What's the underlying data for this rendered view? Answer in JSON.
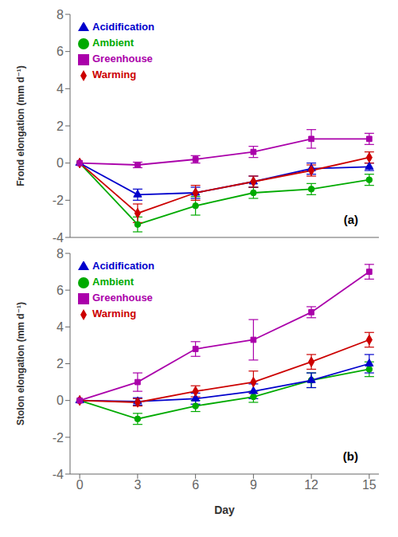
{
  "chart_data": [
    {
      "type": "line",
      "ylabel": "Frond elongation (mm d⁻¹)",
      "annotations": [
        "(a)"
      ],
      "x": [
        0,
        3,
        6,
        9,
        12,
        15
      ],
      "series": [
        {
          "name": "Ambient",
          "color": "#00aa00",
          "marker": "circle",
          "values": [
            0,
            -3.3,
            -2.3,
            -1.6,
            -1.4,
            -0.9
          ],
          "errors": [
            0,
            0.4,
            0.5,
            0.3,
            0.3,
            0.3
          ]
        },
        {
          "name": "Acidification",
          "color": "#0000cc",
          "marker": "triangle",
          "values": [
            0,
            -1.7,
            -1.6,
            -1.0,
            -0.3,
            -0.2
          ],
          "errors": [
            0,
            0.3,
            0.3,
            0.3,
            0.3,
            0.2
          ]
        },
        {
          "name": "Warming",
          "color": "#cc0000",
          "marker": "diamond",
          "values": [
            0,
            -2.7,
            -1.6,
            -1.0,
            -0.4,
            0.3
          ],
          "errors": [
            0,
            0.5,
            0.4,
            0.3,
            0.3,
            0.3
          ]
        },
        {
          "name": "Greenhouse",
          "color": "#aa00aa",
          "marker": "square",
          "values": [
            0,
            -0.1,
            0.2,
            0.6,
            1.3,
            1.3
          ],
          "errors": [
            0,
            0.15,
            0.2,
            0.3,
            0.5,
            0.3
          ]
        }
      ],
      "xlim": [
        -0.5,
        15.5
      ],
      "xticks": [
        0,
        3,
        6,
        9,
        12,
        15
      ],
      "ylim": [
        -4,
        8
      ],
      "yticks": [
        -4,
        -2,
        0,
        2,
        4,
        6,
        8
      ],
      "legend": "upper left",
      "grid": false,
      "tick_labels": "y"
    },
    {
      "type": "line",
      "ylabel": "Stolon elongation (mm d⁻¹)",
      "xlabel": "Day",
      "annotations": [
        "(b)"
      ],
      "x": [
        0,
        3,
        6,
        9,
        12,
        15
      ],
      "series": [
        {
          "name": "Ambient",
          "color": "#00aa00",
          "marker": "circle",
          "values": [
            0,
            -1.0,
            -0.3,
            0.2,
            1.1,
            1.7
          ],
          "errors": [
            0,
            0.3,
            0.3,
            0.3,
            0.4,
            0.4
          ]
        },
        {
          "name": "Acidification",
          "color": "#0000cc",
          "marker": "triangle",
          "values": [
            0,
            -0.05,
            0.1,
            0.5,
            1.1,
            2.0
          ],
          "errors": [
            0,
            0.2,
            0.3,
            0.4,
            0.4,
            0.5
          ]
        },
        {
          "name": "Warming",
          "color": "#cc0000",
          "marker": "diamond",
          "values": [
            0,
            -0.1,
            0.5,
            1.0,
            2.1,
            3.3
          ],
          "errors": [
            0,
            0.2,
            0.3,
            0.6,
            0.4,
            0.4
          ]
        },
        {
          "name": "Greenhouse",
          "color": "#aa00aa",
          "marker": "square",
          "values": [
            0,
            1.0,
            2.8,
            3.3,
            4.8,
            7.0
          ],
          "errors": [
            0,
            0.5,
            0.4,
            1.1,
            0.3,
            0.4
          ]
        }
      ],
      "xlim": [
        -0.5,
        15.5
      ],
      "xticks": [
        0,
        3,
        6,
        9,
        12,
        15
      ],
      "ylim": [
        -4,
        8
      ],
      "yticks": [
        -4,
        -2,
        0,
        2,
        4,
        6,
        8
      ],
      "legend": "upper left",
      "grid": false
    }
  ]
}
